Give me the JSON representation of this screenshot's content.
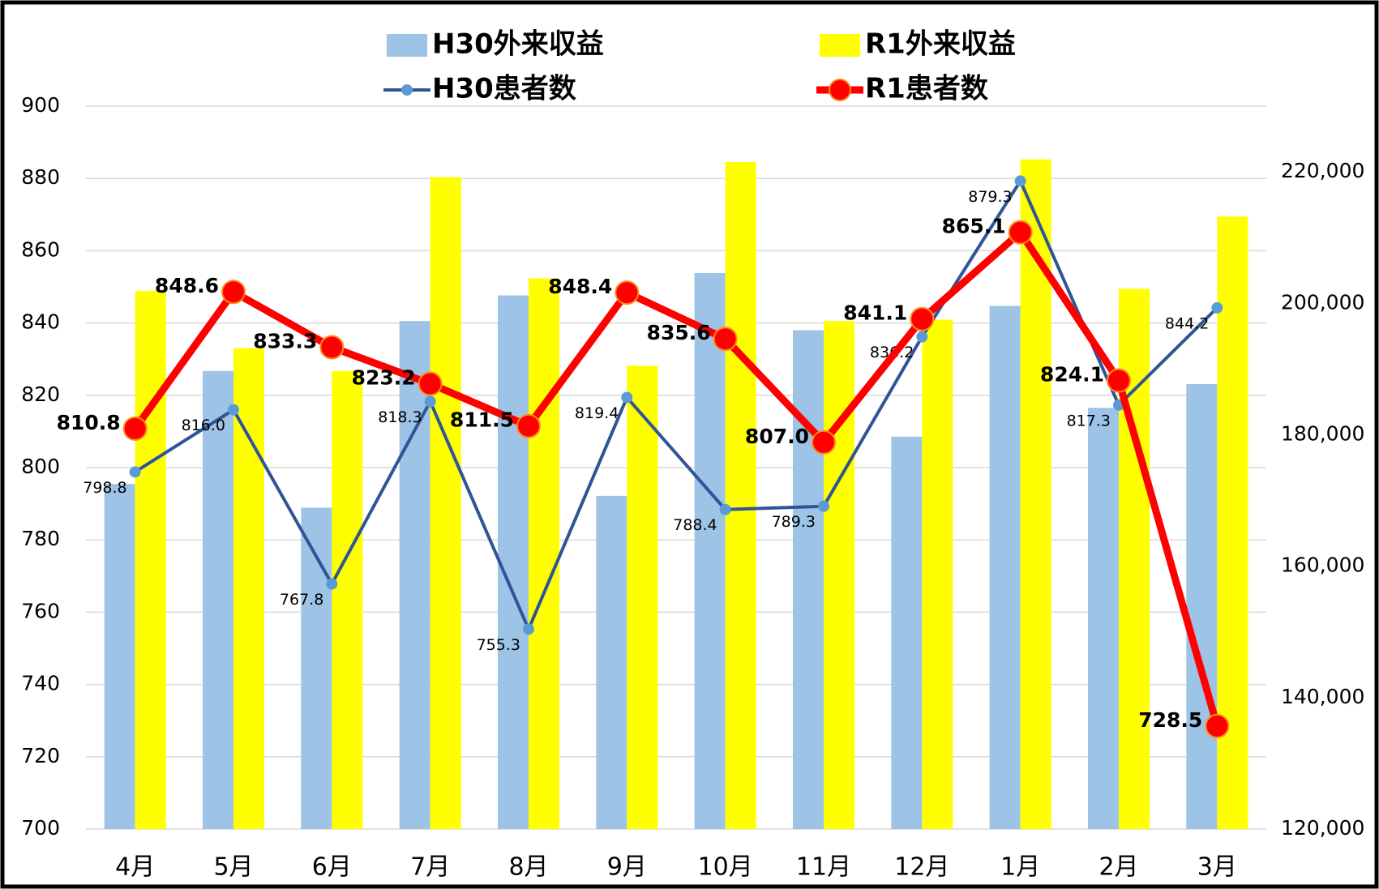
{
  "chart_data": {
    "type": "combo",
    "categories": [
      "4月",
      "5月",
      "6月",
      "7月",
      "8月",
      "9月",
      "10月",
      "11月",
      "12月",
      "1月",
      "2月",
      "3月"
    ],
    "ylim": [
      700,
      900
    ],
    "yticks": [
      700,
      720,
      740,
      760,
      780,
      800,
      820,
      840,
      860,
      880,
      900
    ],
    "y2lim": [
      120000,
      230000
    ],
    "y2ticks": [
      {
        "value": 120000,
        "label": "120,000"
      },
      {
        "value": 140000,
        "label": "140,000"
      },
      {
        "value": 160000,
        "label": "160,000"
      },
      {
        "value": 180000,
        "label": "180,000"
      },
      {
        "value": 200000,
        "label": "200,000"
      },
      {
        "value": 220000,
        "label": "220,000"
      }
    ],
    "grid": true,
    "series": [
      {
        "name": "H30外来収益",
        "type": "bar",
        "axis": "y2",
        "color": "#9dc3e6",
        "values": [
          172500,
          189700,
          168900,
          197300,
          201200,
          170700,
          204600,
          195900,
          179700,
          199600,
          184100,
          187700
        ]
      },
      {
        "name": "R1外来収益",
        "type": "bar",
        "axis": "y2",
        "color": "#ffff00",
        "values": [
          201900,
          193200,
          189700,
          219200,
          203800,
          190500,
          221500,
          197300,
          197500,
          221900,
          202200,
          213200
        ]
      },
      {
        "name": "H30患者数",
        "type": "line",
        "color": "#2f5597",
        "values": [
          798.8,
          816.0,
          767.8,
          818.3,
          755.3,
          819.4,
          788.4,
          789.3,
          836.2,
          879.3,
          817.3,
          844.2
        ],
        "value_labels": [
          "798.8",
          "816.0",
          "767.8",
          "818.3",
          "755.3",
          "819.4",
          "788.4",
          "789.3",
          "836.2",
          "879.3",
          "817.3",
          "844.2"
        ]
      },
      {
        "name": "R1患者数",
        "type": "line",
        "color": "#ff0000",
        "values": [
          810.8,
          848.6,
          833.3,
          823.2,
          811.5,
          848.4,
          835.6,
          807.0,
          841.1,
          865.1,
          824.1,
          728.5
        ],
        "value_labels": [
          "810.8",
          "848.6",
          "833.3",
          "823.2",
          "811.5",
          "848.4",
          "835.6",
          "807.0",
          "841.1",
          "865.1",
          "824.1",
          "728.5"
        ]
      }
    ]
  }
}
